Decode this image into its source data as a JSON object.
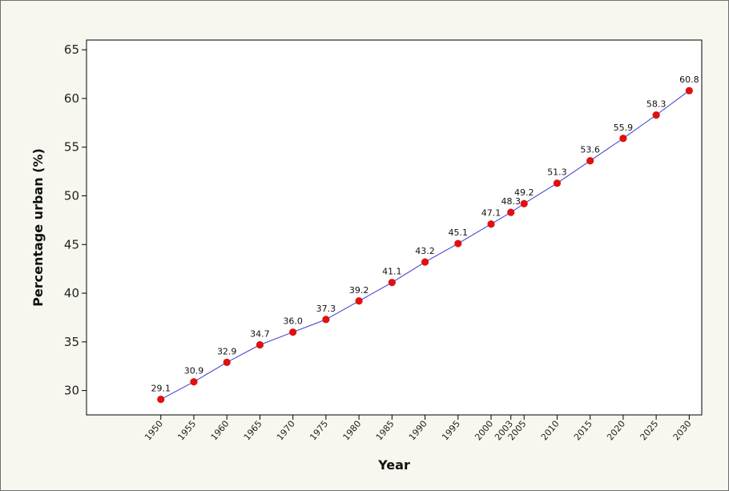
{
  "chart_data": {
    "type": "line",
    "title": "",
    "xlabel": "Year",
    "ylabel": "Percentage urban (%)",
    "x": [
      1950,
      1955,
      1960,
      1965,
      1970,
      1975,
      1980,
      1985,
      1990,
      1995,
      2000,
      2003,
      2005,
      2010,
      2015,
      2020,
      2025,
      2030
    ],
    "x_tick_labels": [
      "1950",
      "1955",
      "1960",
      "1965",
      "1970",
      "1975",
      "1980",
      "1985",
      "1990",
      "1995",
      "2000",
      "2003",
      "2005",
      "2010",
      "2015",
      "2020",
      "2025",
      "2030"
    ],
    "values": [
      29.1,
      30.9,
      32.9,
      34.7,
      36.0,
      37.3,
      39.2,
      41.1,
      43.2,
      45.1,
      47.1,
      48.3,
      49.2,
      51.3,
      53.6,
      55.9,
      58.3,
      60.8
    ],
    "data_labels": [
      "29.1",
      "30.9",
      "32.9",
      "34.7",
      "36.0",
      "37.3",
      "39.2",
      "41.1",
      "43.2",
      "45.1",
      "47.1",
      "48.3",
      "49.2",
      "51.3",
      "53.6",
      "55.9",
      "58.3",
      "60.8"
    ],
    "y_ticks": [
      30,
      35,
      40,
      45,
      50,
      55,
      60,
      65
    ],
    "y_tick_labels": [
      "30",
      "35",
      "40",
      "45",
      "50",
      "55",
      "60",
      "65"
    ],
    "ylim": [
      27.5,
      66
    ],
    "xlim": [
      1938.75,
      2031.9
    ],
    "grid": false,
    "legend": "none",
    "colors": {
      "line": "#3b3bd6",
      "marker": "#e01010",
      "frame_background": "#f7f7ef",
      "plot_background": "#ffffff"
    }
  }
}
